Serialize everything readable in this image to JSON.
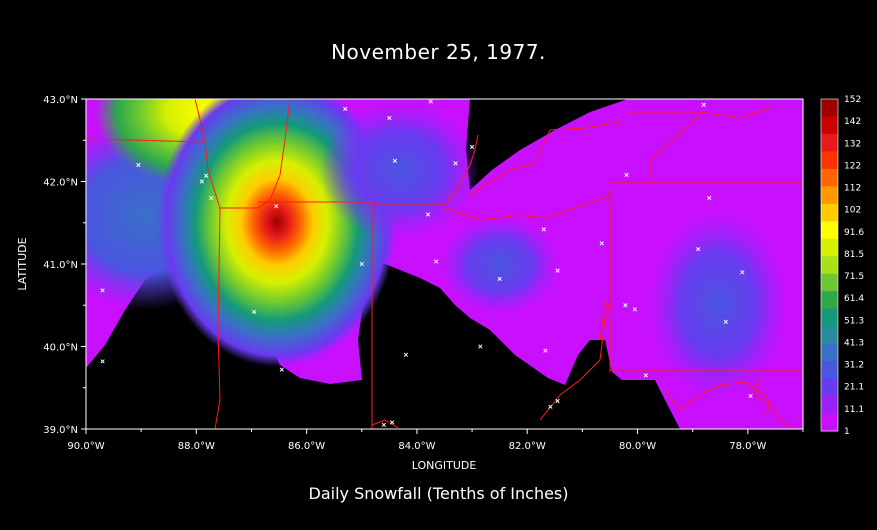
{
  "title": "November 25, 1977.",
  "caption": "Daily Snowfall (Tenths of Inches)",
  "axes": {
    "xlabel": "LONGITUDE",
    "ylabel": "LATITUDE",
    "xticks": [
      "90.0°W",
      "88.0°W",
      "86.0°W",
      "84.0°W",
      "82.0°W",
      "80.0°W",
      "78.0°W"
    ],
    "yticks": [
      "43.0°N",
      "42.0°N",
      "41.0°N",
      "40.0°N",
      "39.0°N"
    ]
  },
  "colorbar": {
    "labels": [
      "152",
      "142",
      "132",
      "122",
      "112",
      "102",
      "91.6",
      "81.5",
      "71.5",
      "61.4",
      "51.3",
      "41.3",
      "31.2",
      "21.1",
      "11.1",
      "1"
    ],
    "colors": [
      "#a00000",
      "#cc0000",
      "#e61a1a",
      "#ff3300",
      "#ff6600",
      "#ff9900",
      "#ffcc00",
      "#ffff00",
      "#d6f000",
      "#a8e01a",
      "#6cc832",
      "#2da84a",
      "#139a7a",
      "#2a8aa0",
      "#3a6fc8",
      "#4a55e0",
      "#6a3af0",
      "#9a22f8",
      "#c810ff"
    ]
  },
  "map_colors": {
    "background": "#000000",
    "boundaries": "#ff1a1a",
    "stations": "#ffffff"
  },
  "chart_data": {
    "type": "heatmap",
    "title": "November 25, 1977.",
    "xlabel": "LONGITUDE",
    "ylabel": "LATITUDE",
    "xlim": [
      -90.0,
      -77.0
    ],
    "ylim": [
      39.0,
      43.0
    ],
    "units": "Tenths of Inches",
    "contour_levels": [
      1,
      11.1,
      21.1,
      31.2,
      41.3,
      51.3,
      61.4,
      71.5,
      81.5,
      91.6,
      102,
      112,
      122,
      132,
      142,
      152
    ],
    "features": [
      {
        "lon": -86.55,
        "lat": 41.55,
        "value": 150
      },
      {
        "lon": -87.6,
        "lat": 42.9,
        "value": 95
      },
      {
        "lon": -82.5,
        "lat": 41.0,
        "value": 25
      },
      {
        "lon": -78.5,
        "lat": 40.5,
        "value": 25
      }
    ],
    "stations": [
      {
        "lon": -89.7,
        "lat": 40.68
      },
      {
        "lon": -89.7,
        "lat": 39.82
      },
      {
        "lon": -89.05,
        "lat": 42.2
      },
      {
        "lon": -87.9,
        "lat": 42.0
      },
      {
        "lon": -87.82,
        "lat": 42.07
      },
      {
        "lon": -87.73,
        "lat": 41.8
      },
      {
        "lon": -86.55,
        "lat": 41.7
      },
      {
        "lon": -86.95,
        "lat": 40.42
      },
      {
        "lon": -86.45,
        "lat": 39.72
      },
      {
        "lon": -85.3,
        "lat": 42.88
      },
      {
        "lon": -84.5,
        "lat": 42.77
      },
      {
        "lon": -84.4,
        "lat": 42.25
      },
      {
        "lon": -83.75,
        "lat": 42.97
      },
      {
        "lon": -83.3,
        "lat": 42.22
      },
      {
        "lon": -83.0,
        "lat": 42.42
      },
      {
        "lon": -83.8,
        "lat": 41.6
      },
      {
        "lon": -85.0,
        "lat": 41.0
      },
      {
        "lon": -83.65,
        "lat": 41.03
      },
      {
        "lon": -84.2,
        "lat": 39.9
      },
      {
        "lon": -84.6,
        "lat": 39.05
      },
      {
        "lon": -84.45,
        "lat": 39.08
      },
      {
        "lon": -82.85,
        "lat": 40.0
      },
      {
        "lon": -82.5,
        "lat": 40.82
      },
      {
        "lon": -81.7,
        "lat": 41.42
      },
      {
        "lon": -81.45,
        "lat": 40.92
      },
      {
        "lon": -81.67,
        "lat": 39.95
      },
      {
        "lon": -81.45,
        "lat": 39.34
      },
      {
        "lon": -81.58,
        "lat": 39.27
      },
      {
        "lon": -80.65,
        "lat": 41.25
      },
      {
        "lon": -80.22,
        "lat": 40.5
      },
      {
        "lon": -80.05,
        "lat": 40.45
      },
      {
        "lon": -80.2,
        "lat": 42.08
      },
      {
        "lon": -79.85,
        "lat": 39.65
      },
      {
        "lon": -78.8,
        "lat": 42.93
      },
      {
        "lon": -78.9,
        "lat": 41.18
      },
      {
        "lon": -78.7,
        "lat": 41.8
      },
      {
        "lon": -78.4,
        "lat": 40.3
      },
      {
        "lon": -78.1,
        "lat": 40.9
      },
      {
        "lon": -77.95,
        "lat": 39.4
      }
    ]
  }
}
